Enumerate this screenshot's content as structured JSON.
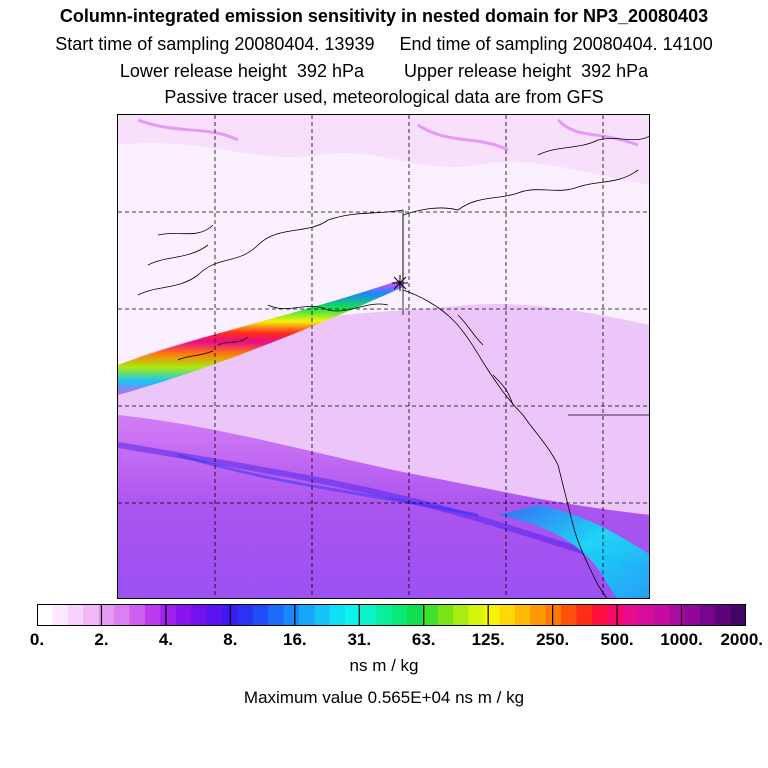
{
  "titles": {
    "line1": "Column-integrated emission sensitivity in nested domain for NP3_20080403",
    "line2": "Start time of sampling 20080404. 13939     End time of sampling 20080404. 14100",
    "line3": "Lower release height  392 hPa        Upper release height  392 hPa",
    "line4": "Passive tracer used, meteorological data are from GFS"
  },
  "colorbar": {
    "tick_labels": [
      "0.",
      "2.",
      "4.",
      "8.",
      "16.",
      "31.",
      "63.",
      "125.",
      "250.",
      "500.",
      "1000.",
      "2000."
    ],
    "segments": [
      "#ffffff",
      "#fde8ff",
      "#f8d2fc",
      "#f2b8f8",
      "#e79cf3",
      "#da80f0",
      "#cc5fef",
      "#bb3cee",
      "#a021ee",
      "#8a14ee",
      "#7212ef",
      "#5a14f0",
      "#3f19f2",
      "#2a32f5",
      "#1f4ef7",
      "#1c6cf8",
      "#1a88f8",
      "#18a6f8",
      "#16c4f8",
      "#10e2f6",
      "#0cf4ee",
      "#0af2c8",
      "#0aeea0",
      "#0ae878",
      "#10e050",
      "#40e030",
      "#78e418",
      "#a8ec10",
      "#d6f40c",
      "#f6f20a",
      "#ffd808",
      "#ffb806",
      "#ff9806",
      "#ff7808",
      "#ff520c",
      "#ff2c18",
      "#ff0e40",
      "#f60a68",
      "#e80c8c",
      "#d80c9c",
      "#c40ca0",
      "#ac0aa0",
      "#900898",
      "#76068c",
      "#5c047a",
      "#420466"
    ]
  },
  "units": "ns m / kg",
  "max_value_label": "Maximum value  0.565E+04 ns m / kg"
}
